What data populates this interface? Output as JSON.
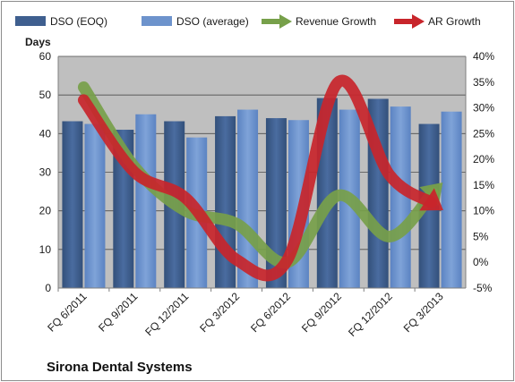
{
  "chart_data": {
    "type": "bar",
    "title": "Sirona Dental Systems",
    "ylabel": "Days",
    "categories": [
      "FQ 6/2011",
      "FQ 9/2011",
      "FQ 12/2011",
      "FQ 3/2012",
      "FQ 6/2012",
      "FQ 9/2012",
      "FQ 12/2012",
      "FQ 3/2013"
    ],
    "ylim": [
      0,
      60
    ],
    "yticks": [
      "0",
      "10",
      "20",
      "30",
      "40",
      "50",
      "60"
    ],
    "y2lim": [
      -5,
      40
    ],
    "y2ticks": [
      "-5%",
      "0%",
      "5%",
      "10%",
      "15%",
      "20%",
      "25%",
      "30%",
      "35%",
      "40%"
    ],
    "series": [
      {
        "name": "DSO (EOQ)",
        "kind": "bar",
        "axis": "left",
        "color": "#3f5f8f",
        "values": [
          43.2,
          41.0,
          43.2,
          44.5,
          44.0,
          49.2,
          49.0,
          42.5
        ]
      },
      {
        "name": "DSO (average)",
        "kind": "bar",
        "axis": "left",
        "color": "#6d93cc",
        "values": [
          42.5,
          45.0,
          39.0,
          46.2,
          43.5,
          46.2,
          47.0,
          45.7
        ]
      },
      {
        "name": "Revenue Growth",
        "kind": "line-arrow",
        "axis": "right",
        "color": "#77a04a",
        "values": [
          34.0,
          18.5,
          10.0,
          7.5,
          0.0,
          13.0,
          5.0,
          15.0
        ]
      },
      {
        "name": "AR Growth",
        "kind": "line-arrow",
        "axis": "right",
        "color": "#c8252b",
        "values": [
          31.5,
          17.5,
          12.5,
          0.5,
          0.5,
          35.0,
          17.0,
          10.5
        ]
      }
    ],
    "legend": "top",
    "grid": true,
    "colors": {
      "plot_background": "#bfbfbf",
      "gridline": "#4d4d4d"
    }
  }
}
